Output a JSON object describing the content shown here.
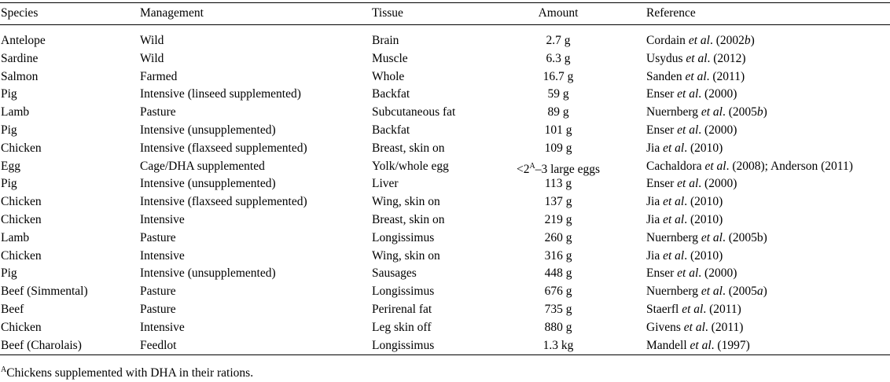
{
  "table": {
    "headers": {
      "species": "Species",
      "management": "Management",
      "tissue": "Tissue",
      "amount": "Amount",
      "reference": "Reference"
    },
    "rows": [
      {
        "species": "Antelope",
        "management": "Wild",
        "tissue": "Brain",
        "amount": "2.7 g",
        "reference": [
          {
            "t": "Cordain "
          },
          {
            "t": "et al",
            "i": true
          },
          {
            "t": ". (2002"
          },
          {
            "t": "b",
            "i": true
          },
          {
            "t": ")"
          }
        ]
      },
      {
        "species": "Sardine",
        "management": "Wild",
        "tissue": "Muscle",
        "amount": "6.3 g",
        "reference": [
          {
            "t": "Usydus "
          },
          {
            "t": "et al",
            "i": true
          },
          {
            "t": ". (2012)"
          }
        ]
      },
      {
        "species": "Salmon",
        "management": "Farmed",
        "tissue": "Whole",
        "amount": "16.7 g",
        "reference": [
          {
            "t": "Sanden "
          },
          {
            "t": "et al",
            "i": true
          },
          {
            "t": ". (2011)"
          }
        ]
      },
      {
        "species": "Pig",
        "management": "Intensive (linseed supplemented)",
        "tissue": "Backfat",
        "amount": "59 g",
        "reference": [
          {
            "t": "Enser "
          },
          {
            "t": "et al",
            "i": true
          },
          {
            "t": ". (2000)"
          }
        ]
      },
      {
        "species": "Lamb",
        "management": "Pasture",
        "tissue": "Subcutaneous fat",
        "amount": "89 g",
        "reference": [
          {
            "t": "Nuernberg "
          },
          {
            "t": "et al",
            "i": true
          },
          {
            "t": ". (2005"
          },
          {
            "t": "b",
            "i": true
          },
          {
            "t": ")"
          }
        ]
      },
      {
        "species": "Pig",
        "management": "Intensive (unsupplemented)",
        "tissue": "Backfat",
        "amount": "101 g",
        "reference": [
          {
            "t": "Enser "
          },
          {
            "t": "et al",
            "i": true
          },
          {
            "t": ". (2000)"
          }
        ]
      },
      {
        "species": "Chicken",
        "management": "Intensive (flaxseed supplemented)",
        "tissue": "Breast, skin on",
        "amount": "109 g",
        "reference": [
          {
            "t": "Jia "
          },
          {
            "t": "et al",
            "i": true
          },
          {
            "t": ". (2010)"
          }
        ]
      },
      {
        "species": "Egg",
        "management": "Cage/DHA supplemented",
        "tissue": "Yolk/whole egg",
        "amount": [
          {
            "t": "<2"
          },
          {
            "t": "A",
            "sup": true
          },
          {
            "t": "–3 large eggs"
          }
        ],
        "reference": [
          {
            "t": "Cachaldora "
          },
          {
            "t": "et al",
            "i": true
          },
          {
            "t": ". (2008); Anderson (2011)"
          }
        ]
      },
      {
        "species": "Pig",
        "management": "Intensive (unsupplemented)",
        "tissue": "Liver",
        "amount": "113 g",
        "reference": [
          {
            "t": "Enser "
          },
          {
            "t": "et al",
            "i": true
          },
          {
            "t": ". (2000)"
          }
        ]
      },
      {
        "species": "Chicken",
        "management": "Intensive (flaxseed supplemented)",
        "tissue": "Wing, skin on",
        "amount": "137 g",
        "reference": [
          {
            "t": "Jia "
          },
          {
            "t": "et al",
            "i": true
          },
          {
            "t": ". (2010)"
          }
        ]
      },
      {
        "species": "Chicken",
        "management": "Intensive",
        "tissue": "Breast, skin on",
        "amount": "219 g",
        "reference": [
          {
            "t": "Jia "
          },
          {
            "t": "et al",
            "i": true
          },
          {
            "t": ". (2010)"
          }
        ]
      },
      {
        "species": "Lamb",
        "management": "Pasture",
        "tissue": "Longissimus",
        "amount": "260 g",
        "reference": [
          {
            "t": "Nuernberg "
          },
          {
            "t": "et al",
            "i": true
          },
          {
            "t": ". (2005b)"
          }
        ]
      },
      {
        "species": "Chicken",
        "management": "Intensive",
        "tissue": "Wing, skin on",
        "amount": "316 g",
        "reference": [
          {
            "t": "Jia "
          },
          {
            "t": "et al",
            "i": true
          },
          {
            "t": ". (2010)"
          }
        ]
      },
      {
        "species": "Pig",
        "management": "Intensive (unsupplemented)",
        "tissue": "Sausages",
        "amount": "448 g",
        "reference": [
          {
            "t": "Enser "
          },
          {
            "t": "et al",
            "i": true
          },
          {
            "t": ". (2000)"
          }
        ]
      },
      {
        "species": "Beef (Simmental)",
        "management": "Pasture",
        "tissue": "Longissimus",
        "amount": "676 g",
        "reference": [
          {
            "t": "Nuernberg "
          },
          {
            "t": "et al",
            "i": true
          },
          {
            "t": ". (2005"
          },
          {
            "t": "a",
            "i": true
          },
          {
            "t": ")"
          }
        ]
      },
      {
        "species": "Beef",
        "management": "Pasture",
        "tissue": "Perirenal fat",
        "amount": "735 g",
        "reference": [
          {
            "t": "Staerfl "
          },
          {
            "t": "et al",
            "i": true
          },
          {
            "t": ". (2011)"
          }
        ]
      },
      {
        "species": "Chicken",
        "management": "Intensive",
        "tissue": "Leg skin off",
        "amount": "880 g",
        "reference": [
          {
            "t": "Givens "
          },
          {
            "t": "et al",
            "i": true
          },
          {
            "t": ". (2011)"
          }
        ]
      },
      {
        "species": "Beef (Charolais)",
        "management": "Feedlot",
        "tissue": "Longissimus",
        "amount": "1.3 kg",
        "reference": [
          {
            "t": "Mandell "
          },
          {
            "t": "et al",
            "i": true
          },
          {
            "t": ". (1997)"
          }
        ]
      }
    ]
  },
  "footnote": {
    "marker": "A",
    "text": "Chickens supplemented with DHA in their rations."
  }
}
